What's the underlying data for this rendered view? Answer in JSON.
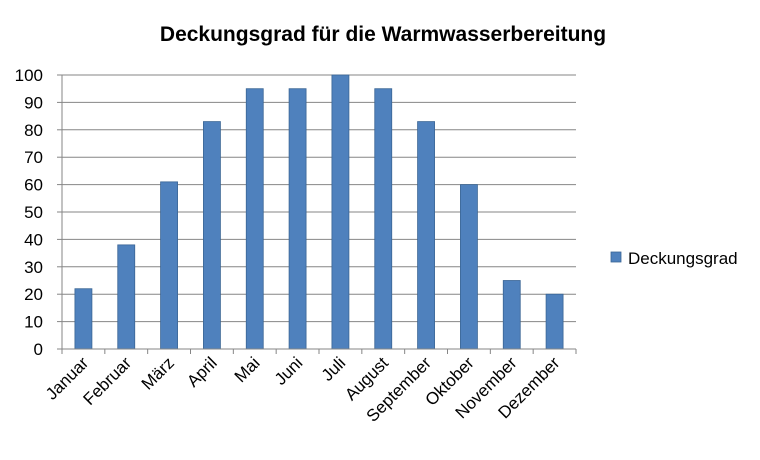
{
  "chart_data": {
    "type": "bar",
    "title": "Deckungsgrad  für die Warmwasserbereitung",
    "categories": [
      "Januar",
      "Februar",
      "März",
      "April",
      "Mai",
      "Juni",
      "Juli",
      "August",
      "September",
      "Oktober",
      "November",
      "Dezember"
    ],
    "series": [
      {
        "name": "Deckungsgrad",
        "values": [
          22,
          38,
          61,
          83,
          95,
          95,
          100,
          95,
          83,
          60,
          25,
          20
        ]
      }
    ],
    "ylim": [
      0,
      100
    ],
    "yticks": [
      "0",
      "10",
      "20",
      "30",
      "40",
      "50",
      "60",
      "70",
      "80",
      "90",
      "100"
    ],
    "grid": true,
    "legend_position": "right",
    "colors": {
      "bar": "#4f81bd",
      "bar_edge": "#3a6595",
      "grid": "#868686"
    }
  }
}
